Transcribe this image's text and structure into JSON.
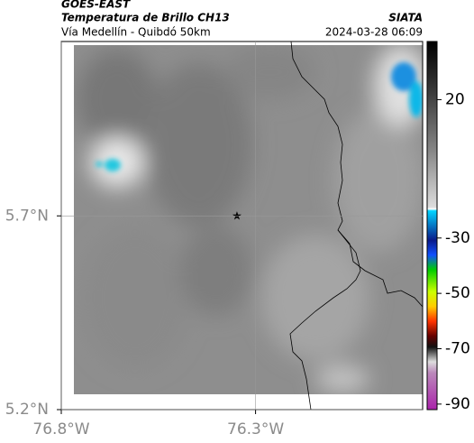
{
  "header": {
    "source": "GOES-EAST",
    "title": "Temperatura de Brillo CH13",
    "subtitle": "Vía Medellín - Quibdó 50km",
    "brand": "SIATA",
    "timestamp": "2024-03-28 06:09"
  },
  "map": {
    "xlim": [
      -76.8,
      -75.87
    ],
    "ylim": [
      5.2,
      6.15
    ],
    "xticks": [
      {
        "value": -76.8,
        "label": "76.8°W"
      },
      {
        "value": -76.3,
        "label": "76.3°W"
      }
    ],
    "yticks": [
      {
        "value": 5.2,
        "label": "5.2°N"
      },
      {
        "value": 5.7,
        "label": "5.7°N"
      }
    ],
    "grid": true
  },
  "colorbar": {
    "lim": [
      41,
      -92
    ],
    "ticks": [
      20,
      -30,
      -50,
      -70,
      -90
    ]
  }
}
